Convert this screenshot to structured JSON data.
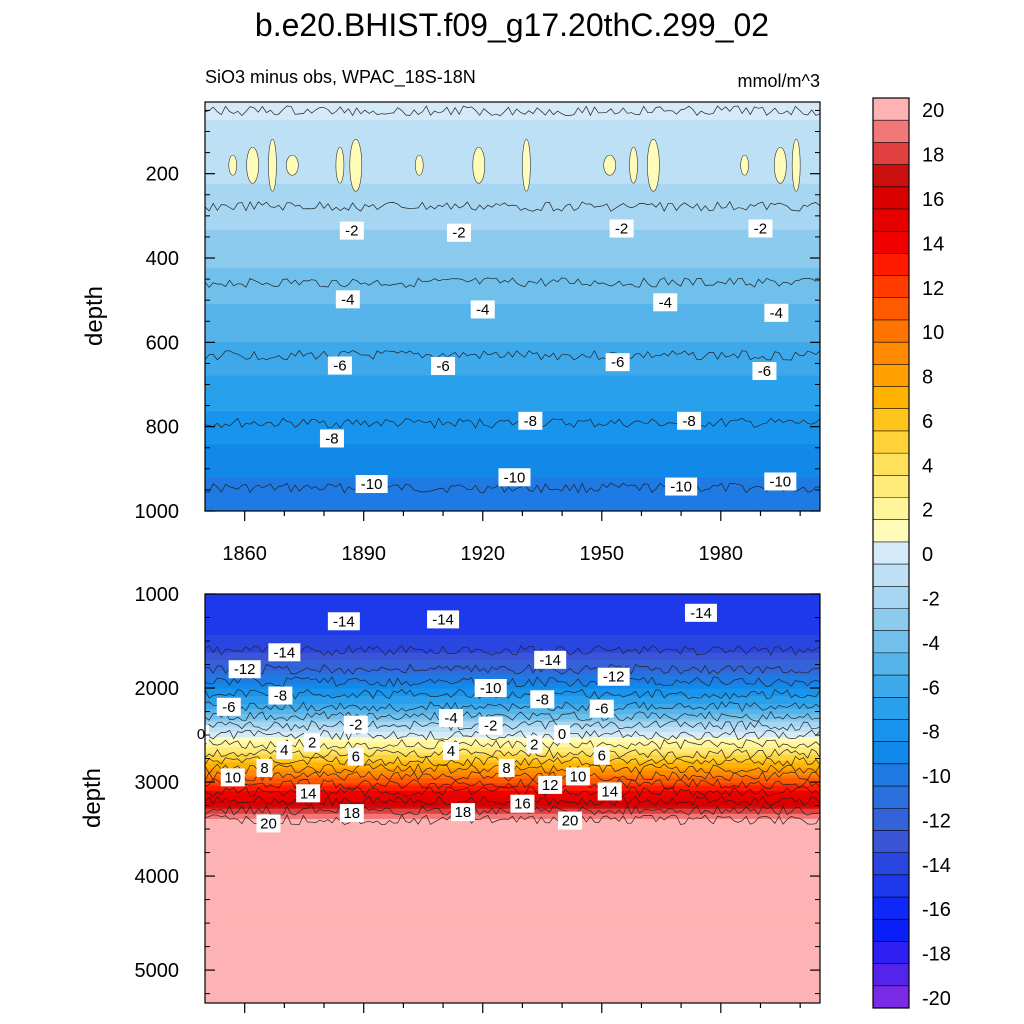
{
  "figure": {
    "title": "b.e20.BHIST.f09_g17.20thC.299_02"
  },
  "chart_data": [
    {
      "type": "heatmap",
      "panel": "upper",
      "subtitle_left": "SiO3 minus obs, WPAC_18S-18N",
      "subtitle_right": "mmol/m^3",
      "xlabel": "",
      "ylabel": "depth",
      "x_range": [
        1850,
        2005
      ],
      "x_ticks": [
        1860,
        1890,
        1920,
        1950,
        1980
      ],
      "y_range": [
        30,
        1000
      ],
      "y_reversed": true,
      "y_ticks": [
        200,
        400,
        600,
        800,
        1000
      ],
      "grid": false,
      "field_profile": [
        {
          "depth": 30,
          "value": 0.5
        },
        {
          "depth": 80,
          "value": -0.7
        },
        {
          "depth": 200,
          "value": -1.3
        },
        {
          "depth": 300,
          "value": -2.2
        },
        {
          "depth": 400,
          "value": -3.3
        },
        {
          "depth": 500,
          "value": -4.5
        },
        {
          "depth": 600,
          "value": -5.6
        },
        {
          "depth": 700,
          "value": -6.9
        },
        {
          "depth": 800,
          "value": -8.1
        },
        {
          "depth": 900,
          "value": -9.5
        },
        {
          "depth": 1000,
          "value": -10.6
        }
      ],
      "contour_labels": [
        {
          "x": 1887,
          "depth": 335,
          "value": "-2"
        },
        {
          "x": 1914,
          "depth": 340,
          "value": "-2"
        },
        {
          "x": 1955,
          "depth": 330,
          "value": "-2"
        },
        {
          "x": 1990,
          "depth": 330,
          "value": "-2"
        },
        {
          "x": 1886,
          "depth": 498,
          "value": "-4"
        },
        {
          "x": 1920,
          "depth": 522,
          "value": "-4"
        },
        {
          "x": 1966,
          "depth": 505,
          "value": "-4"
        },
        {
          "x": 1994,
          "depth": 530,
          "value": "-4"
        },
        {
          "x": 1884,
          "depth": 655,
          "value": "-6"
        },
        {
          "x": 1910,
          "depth": 656,
          "value": "-6"
        },
        {
          "x": 1954,
          "depth": 647,
          "value": "-6"
        },
        {
          "x": 1991,
          "depth": 668,
          "value": "-6"
        },
        {
          "x": 1882,
          "depth": 828,
          "value": "-8"
        },
        {
          "x": 1932,
          "depth": 786,
          "value": "-8"
        },
        {
          "x": 1972,
          "depth": 786,
          "value": "-8"
        },
        {
          "x": 1892,
          "depth": 936,
          "value": "-10"
        },
        {
          "x": 1928,
          "depth": 920,
          "value": "-10"
        },
        {
          "x": 1970,
          "depth": 942,
          "value": "-10"
        },
        {
          "x": 1995,
          "depth": 930,
          "value": "-10"
        }
      ]
    },
    {
      "type": "heatmap",
      "panel": "lower",
      "xlabel": "",
      "ylabel": "depth",
      "x_range": [
        1850,
        2005
      ],
      "y_range": [
        1000,
        5350
      ],
      "y_reversed": true,
      "y_ticks": [
        1000,
        2000,
        3000,
        4000,
        5000
      ],
      "grid": false,
      "field_profile": [
        {
          "depth": 1000,
          "value": -15.5
        },
        {
          "depth": 1300,
          "value": -15.5
        },
        {
          "depth": 1600,
          "value": -14
        },
        {
          "depth": 1800,
          "value": -12
        },
        {
          "depth": 2000,
          "value": -9
        },
        {
          "depth": 2200,
          "value": -6
        },
        {
          "depth": 2400,
          "value": -2
        },
        {
          "depth": 2500,
          "value": 0
        },
        {
          "depth": 2700,
          "value": 4
        },
        {
          "depth": 2900,
          "value": 9
        },
        {
          "depth": 3100,
          "value": 14
        },
        {
          "depth": 3250,
          "value": 17
        },
        {
          "depth": 3400,
          "value": 20
        },
        {
          "depth": 3450,
          "value": 21
        },
        {
          "depth": 5350,
          "value": 21
        }
      ],
      "contour_labels": [
        {
          "x": 1885,
          "depth": 1290,
          "value": "-14"
        },
        {
          "x": 1910,
          "depth": 1270,
          "value": "-14"
        },
        {
          "x": 1975,
          "depth": 1200,
          "value": "-14"
        },
        {
          "x": 1870,
          "depth": 1620,
          "value": "-14"
        },
        {
          "x": 1937,
          "depth": 1700,
          "value": "-14"
        },
        {
          "x": 1860,
          "depth": 1800,
          "value": "-12"
        },
        {
          "x": 1953,
          "depth": 1880,
          "value": "-12"
        },
        {
          "x": 1922,
          "depth": 2000,
          "value": "-10"
        },
        {
          "x": 1869,
          "depth": 2080,
          "value": "-8"
        },
        {
          "x": 1935,
          "depth": 2120,
          "value": "-8"
        },
        {
          "x": 1856,
          "depth": 2200,
          "value": "-6"
        },
        {
          "x": 1950,
          "depth": 2220,
          "value": "-6"
        },
        {
          "x": 1888,
          "depth": 2390,
          "value": "-2"
        },
        {
          "x": 1922,
          "depth": 2400,
          "value": "-2"
        },
        {
          "x": 1912,
          "depth": 2320,
          "value": "-4"
        },
        {
          "x": 1849,
          "depth": 2490,
          "value": "0"
        },
        {
          "x": 1940,
          "depth": 2490,
          "value": "0"
        },
        {
          "x": 1877,
          "depth": 2580,
          "value": "2"
        },
        {
          "x": 1933,
          "depth": 2600,
          "value": "2"
        },
        {
          "x": 1870,
          "depth": 2660,
          "value": "4"
        },
        {
          "x": 1912,
          "depth": 2670,
          "value": "4"
        },
        {
          "x": 1888,
          "depth": 2730,
          "value": "6"
        },
        {
          "x": 1950,
          "depth": 2720,
          "value": "6"
        },
        {
          "x": 1865,
          "depth": 2850,
          "value": "8"
        },
        {
          "x": 1926,
          "depth": 2850,
          "value": "8"
        },
        {
          "x": 1857,
          "depth": 2950,
          "value": "10"
        },
        {
          "x": 1944,
          "depth": 2940,
          "value": "10"
        },
        {
          "x": 1937,
          "depth": 3030,
          "value": "12"
        },
        {
          "x": 1876,
          "depth": 3120,
          "value": "14"
        },
        {
          "x": 1952,
          "depth": 3100,
          "value": "14"
        },
        {
          "x": 1930,
          "depth": 3230,
          "value": "16"
        },
        {
          "x": 1887,
          "depth": 3330,
          "value": "18"
        },
        {
          "x": 1915,
          "depth": 3320,
          "value": "18"
        },
        {
          "x": 1866,
          "depth": 3440,
          "value": "20"
        },
        {
          "x": 1942,
          "depth": 3410,
          "value": "20"
        }
      ]
    }
  ],
  "colorbar": {
    "tick_labels": [
      "20",
      "18",
      "16",
      "14",
      "12",
      "10",
      "8",
      "6",
      "4",
      "2",
      "0",
      "-2",
      "-4",
      "-6",
      "-8",
      "-10",
      "-12",
      "-14",
      "-16",
      "-18",
      "-20"
    ],
    "colors": [
      "#fdb3b3",
      "#f27777",
      "#e14040",
      "#cc1010",
      "#d90000",
      "#e60000",
      "#f20000",
      "#ff1a00",
      "#ff3b00",
      "#ff5a00",
      "#ff7300",
      "#ff8a00",
      "#ffa000",
      "#ffb300",
      "#ffc41c",
      "#ffd23a",
      "#ffe05a",
      "#ffeb7a",
      "#fff59a",
      "#fffbb8",
      "#d4eaf8",
      "#bde0f5",
      "#a6d6f2",
      "#8dcbee",
      "#71c0ec",
      "#56b4ea",
      "#3ea9ea",
      "#29a0ec",
      "#1994ec",
      "#1288e8",
      "#1f7be3",
      "#2b6fde",
      "#3362d9",
      "#3a55d6",
      "#2a46e0",
      "#1e38ec",
      "#1028f8",
      "#0a1ef8",
      "#2e20f2",
      "#5424ea",
      "#7a2ae4"
    ]
  }
}
